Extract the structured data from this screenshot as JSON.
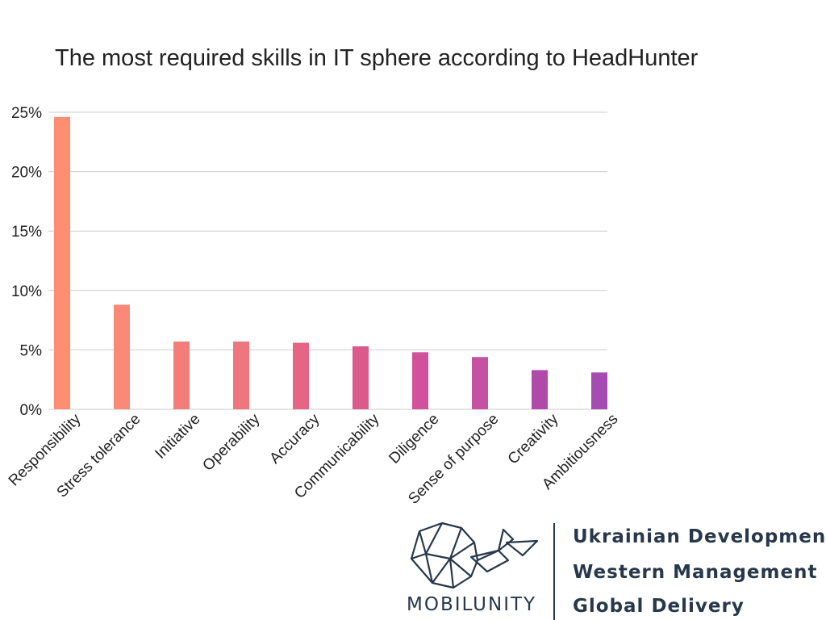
{
  "chart_data": {
    "type": "bar",
    "title": "The most required skills in IT sphere according to HeadHunter",
    "categories": [
      "Responsibility",
      "Stress tolerance",
      "Initiative",
      "Operability",
      "Accuracy",
      "Communicability",
      "Diligence",
      "Sense of purpose",
      "Creativity",
      "Ambitiousness"
    ],
    "values": [
      24.6,
      8.8,
      5.7,
      5.7,
      5.6,
      5.3,
      4.8,
      4.4,
      3.3,
      3.1
    ],
    "colors": [
      "#ff8e71",
      "#fb8977",
      "#f37d7a",
      "#ed767f",
      "#e66585",
      "#dc5a8b",
      "#d1529a",
      "#c650a1",
      "#b049a9",
      "#a64bb2"
    ],
    "ylim": [
      0,
      25
    ],
    "yticks": [
      "0%",
      "5%",
      "10%",
      "15%",
      "20%",
      "25%"
    ],
    "ytick_values": [
      0,
      5,
      10,
      15,
      20,
      25
    ],
    "xlabel": "",
    "ylabel": "",
    "grid": true,
    "legend": "none"
  },
  "logo": {
    "wordmark": "MOBILUNITY",
    "taglines": [
      "Ukrainian Development",
      "Western Management",
      "Global Delivery"
    ],
    "color": "#27384a",
    "icon": "whale-icon"
  }
}
